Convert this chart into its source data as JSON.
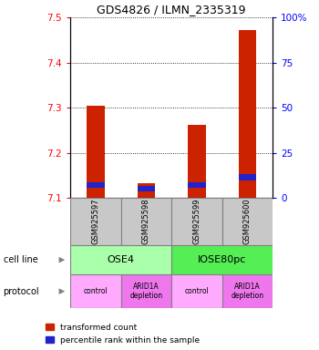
{
  "title": "GDS4826 / ILMN_2335319",
  "samples": [
    "GSM925597",
    "GSM925598",
    "GSM925599",
    "GSM925600"
  ],
  "bar_bottom": 7.1,
  "red_tops": [
    7.305,
    7.132,
    7.262,
    7.473
  ],
  "blue_tops": [
    7.134,
    7.127,
    7.134,
    7.152
  ],
  "blue_bottoms": [
    7.122,
    7.115,
    7.122,
    7.138
  ],
  "ylim": [
    7.1,
    7.5
  ],
  "yticks_left": [
    7.1,
    7.2,
    7.3,
    7.4,
    7.5
  ],
  "yticks_right": [
    0,
    25,
    50,
    75,
    100
  ],
  "cell_line_labels": [
    "OSE4",
    "IOSE80pc"
  ],
  "cell_line_spans": [
    [
      0,
      2
    ],
    [
      2,
      4
    ]
  ],
  "cell_line_colors": [
    "#aaffaa",
    "#55ee55"
  ],
  "protocol_labels": [
    "control",
    "ARID1A\ndepletion",
    "control",
    "ARID1A\ndepletion"
  ],
  "protocol_colors": [
    "#ffaaff",
    "#ee77ee",
    "#ffaaff",
    "#ee77ee"
  ],
  "bar_color_red": "#cc2200",
  "bar_color_blue": "#2222cc",
  "bar_color_gray": "#c8c8c8",
  "legend_red": "transformed count",
  "legend_blue": "percentile rank within the sample",
  "label_cell_line": "cell line",
  "label_protocol": "protocol"
}
